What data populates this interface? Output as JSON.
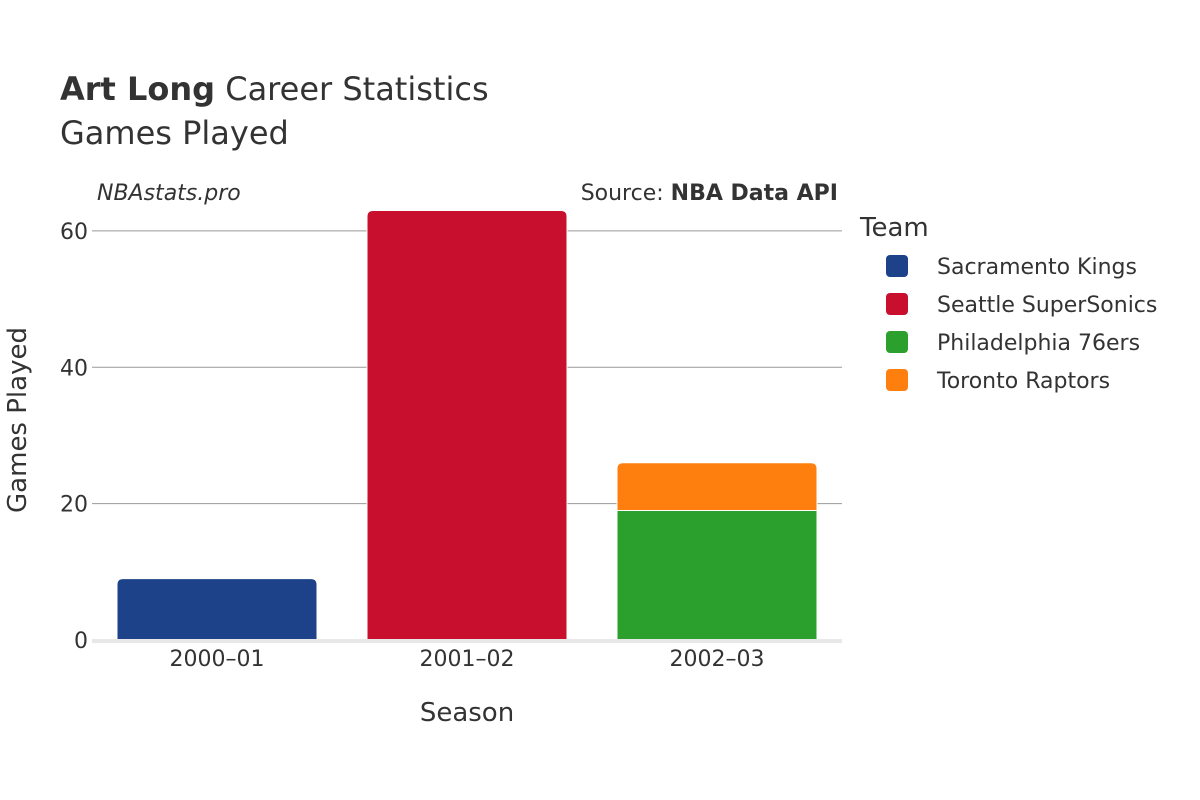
{
  "title": {
    "player": "Art Long",
    "rest": " Career Statistics",
    "subtitle": "Games Played"
  },
  "branding": {
    "site": "NBAstats.pro",
    "source_label": "Source: ",
    "source_name": "NBA Data API"
  },
  "legend": {
    "title": "Team"
  },
  "colors": {
    "Sacramento Kings": "#1d428a",
    "Seattle SuperSonics": "#c8102e",
    "Philadelphia 76ers": "#2ca02c",
    "Toronto Raptors": "#ff7f0e"
  },
  "chart_data": {
    "type": "bar",
    "stacked": true,
    "xlabel": "Season",
    "ylabel": "Games Played",
    "ylim": [
      0,
      66
    ],
    "yticks": [
      0,
      20,
      40,
      60
    ],
    "grid": true,
    "legend_position": "right",
    "categories": [
      "2000–01",
      "2001–02",
      "2002–03"
    ],
    "series": [
      {
        "name": "Sacramento Kings",
        "values": [
          9,
          0,
          0
        ]
      },
      {
        "name": "Seattle SuperSonics",
        "values": [
          0,
          63,
          0
        ]
      },
      {
        "name": "Philadelphia 76ers",
        "values": [
          0,
          0,
          19
        ]
      },
      {
        "name": "Toronto Raptors",
        "values": [
          0,
          0,
          7
        ]
      }
    ]
  }
}
